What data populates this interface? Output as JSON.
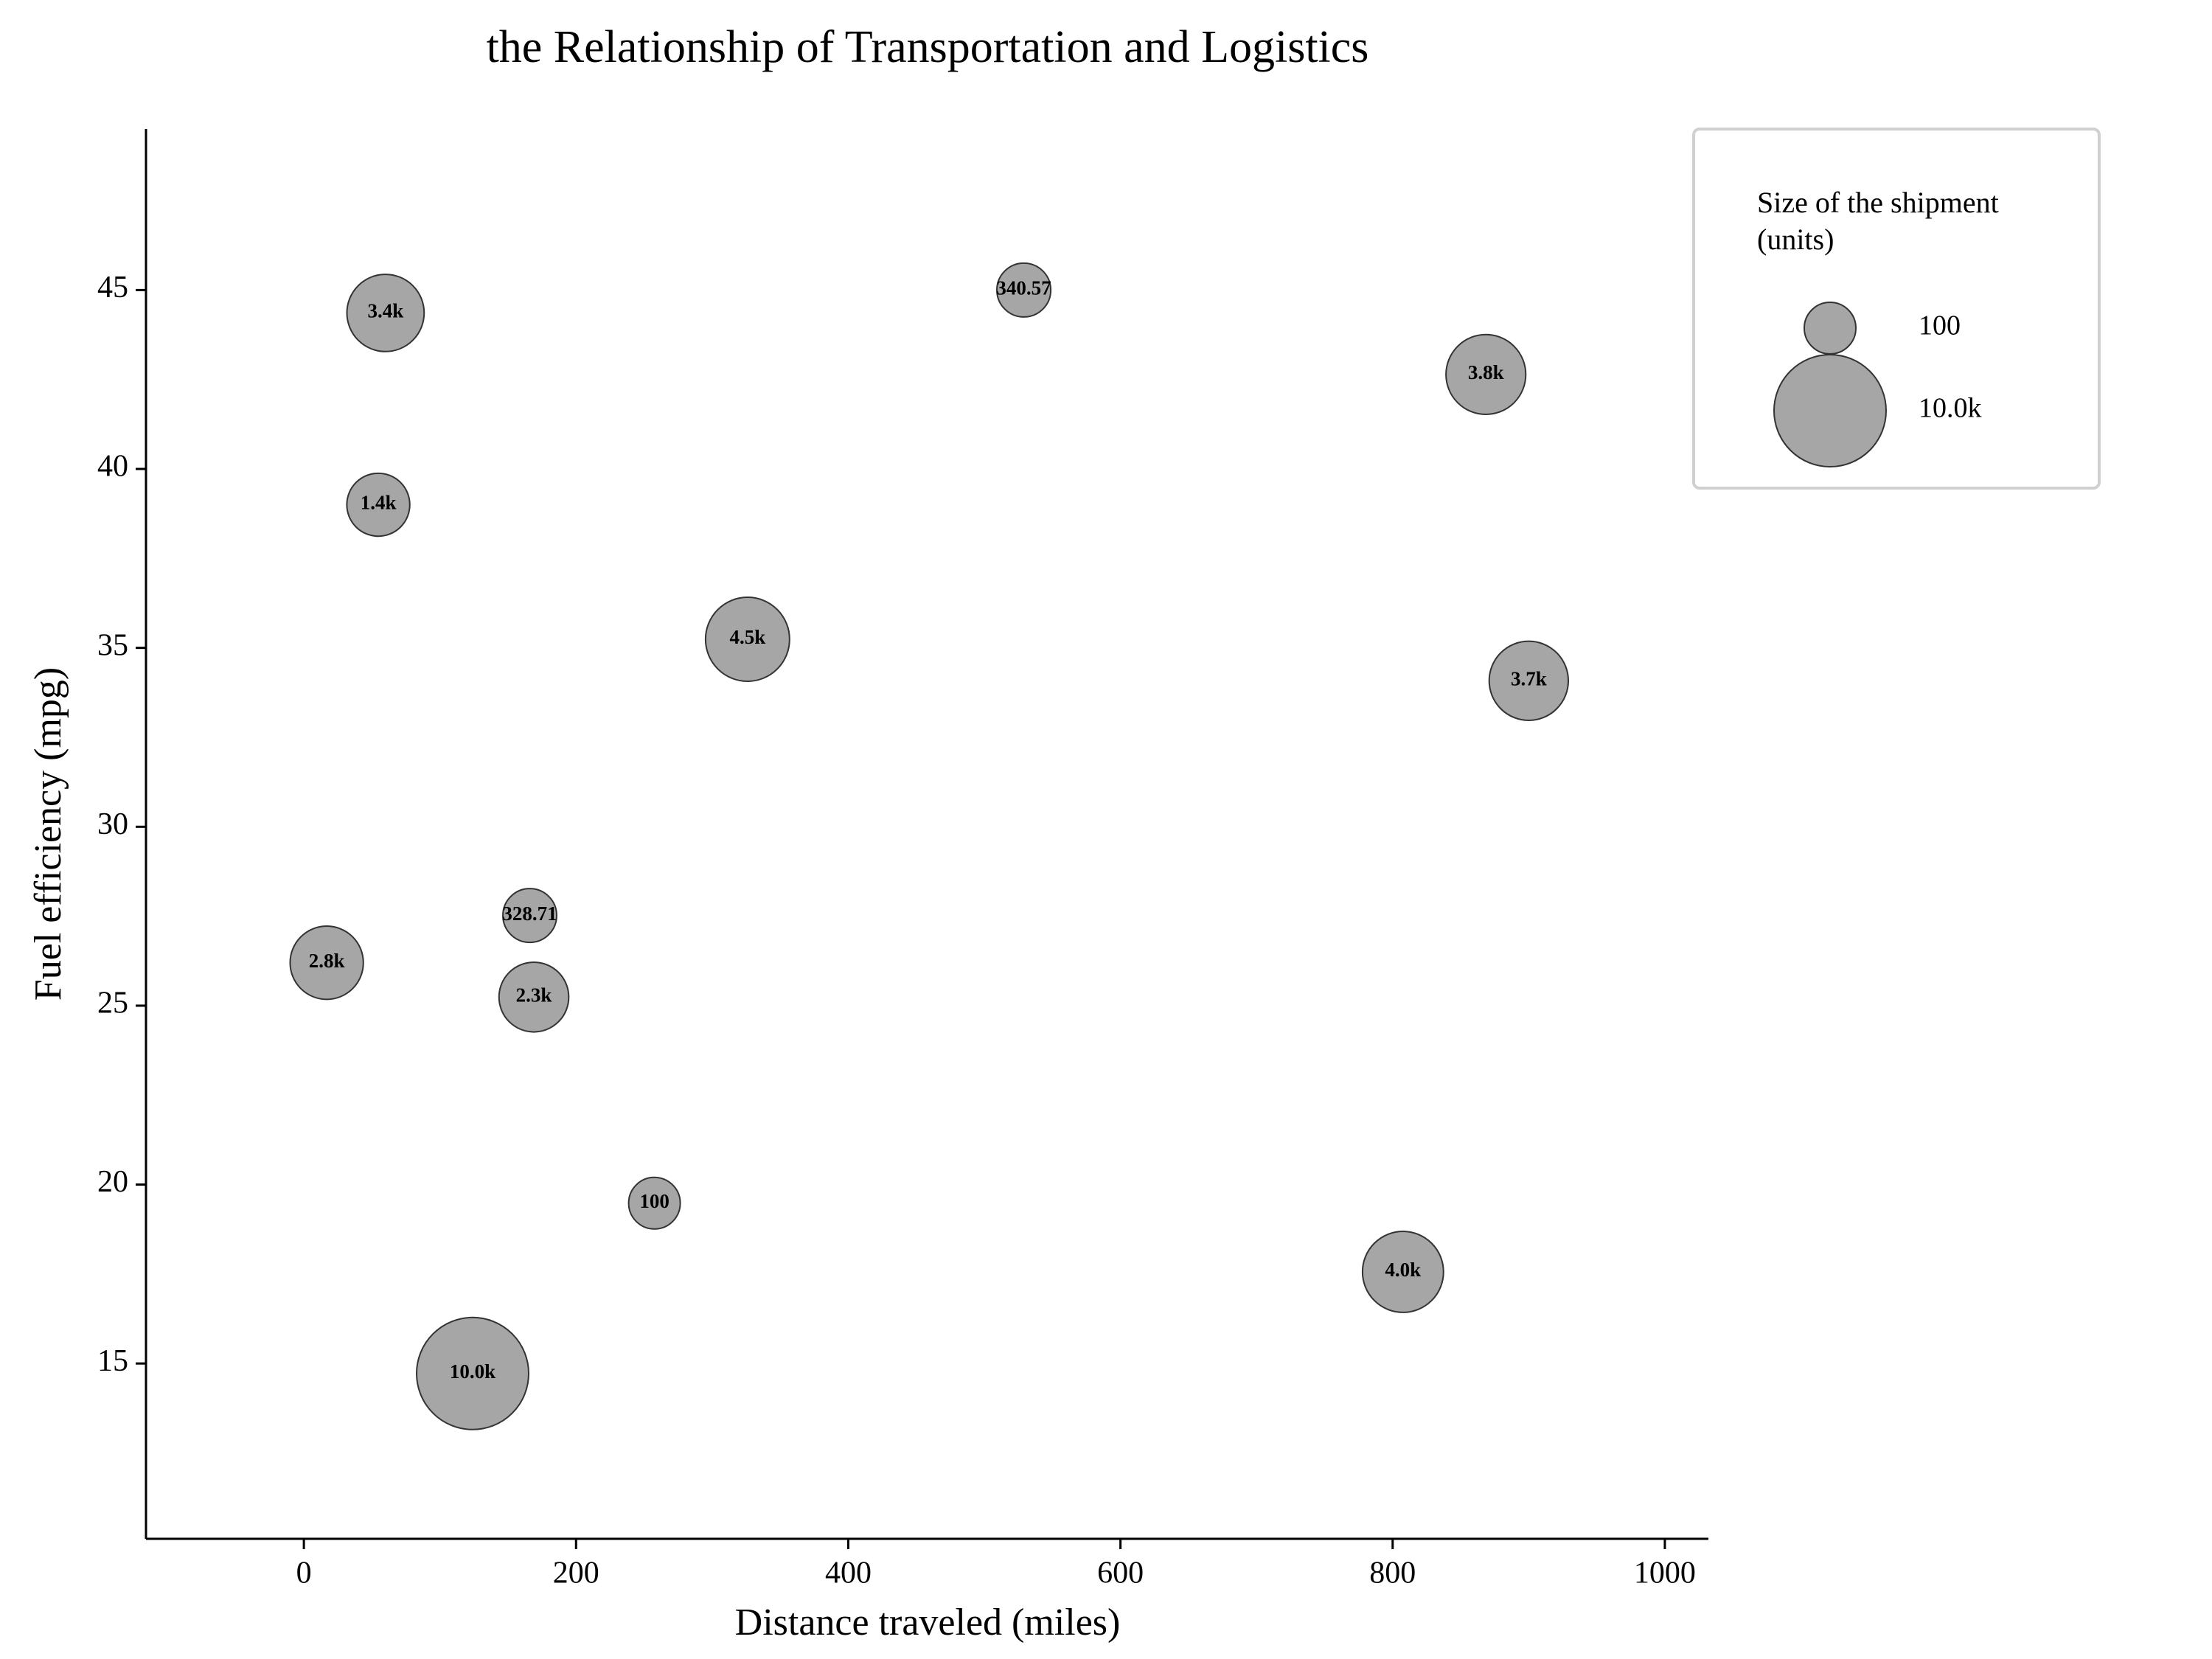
{
  "chart_data": {
    "type": "bubble",
    "title": "the Relationship of Transportation and Logistics",
    "x_label": "Distance traveled (miles)",
    "y_label": "Fuel efficiency (mpg)",
    "xlim": [
      -116,
      1032
    ],
    "ylim": [
      10.1,
      49.5
    ],
    "xticks": [
      0,
      200,
      400,
      600,
      800,
      1000
    ],
    "yticks": [
      15,
      20,
      25,
      30,
      35,
      40,
      45
    ],
    "color": "#a6a6a6",
    "edge_color": "#333333",
    "x": [
      60,
      529,
      868.5,
      54.7,
      326,
      900,
      166,
      16.8,
      169,
      257.6,
      807.6,
      124
    ],
    "values": [
      44.36,
      45,
      42.64,
      39.0,
      35.24,
      34.08,
      27.52,
      26.2,
      25.24,
      19.48,
      17.56,
      14.72
    ],
    "sizes": [
      3400,
      340.57,
      3800,
      1400,
      4500,
      3700,
      328.71,
      2800,
      2300,
      100,
      4000,
      10000
    ],
    "value_labels": [
      "3.4k",
      "340.57",
      "3.8k",
      "1.4k",
      "4.5k",
      "3.7k",
      "328.71",
      "2.8k",
      "2.3k",
      "100",
      "4.0k",
      "10.0k"
    ],
    "size_legend": {
      "title": "Size of the shipment (units)",
      "position": "upper right",
      "entries": [
        {
          "value": 100,
          "label": "100"
        },
        {
          "value": 10000,
          "label": "10.0k"
        }
      ]
    }
  }
}
